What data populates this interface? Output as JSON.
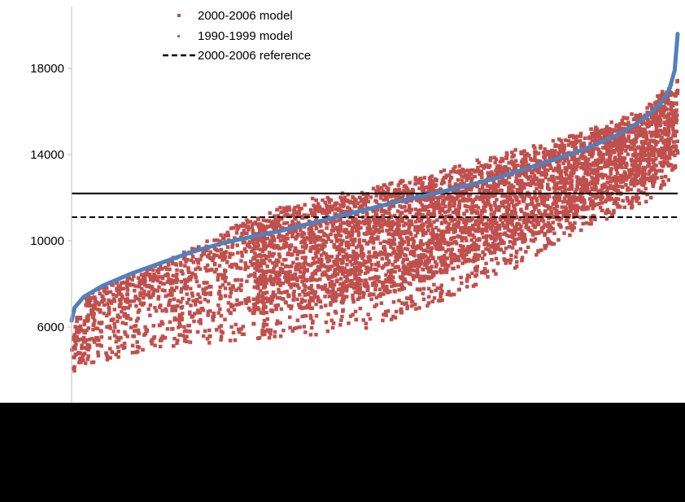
{
  "chart_data": {
    "type": "scatter",
    "title": "",
    "xlabel": "",
    "ylabel": "",
    "ylim": [
      4000,
      19500
    ],
    "y_ticks": [
      6000,
      10000,
      14000,
      18000
    ],
    "y_tick_labels": [
      "6000",
      "10000",
      "14000",
      "18000"
    ],
    "x_tick_labels": [],
    "grid": false,
    "legend_position": "top-center",
    "legend": [
      {
        "name": "2000-2006 model",
        "marker": "square",
        "color": "#C0504D"
      },
      {
        "name": "1990-1999 model",
        "marker": "dot",
        "color": "#4F81BD"
      },
      {
        "name": "2000-2006 reference",
        "marker": "dashed-line",
        "color": "#000000"
      }
    ],
    "series": [
      {
        "name": "2000-2006 model",
        "color": "#C0504D",
        "x_range": [
          0,
          100
        ],
        "upper_envelope": [
          [
            0,
            6000
          ],
          [
            2,
            7300
          ],
          [
            5,
            7900
          ],
          [
            10,
            8400
          ],
          [
            15,
            9000
          ],
          [
            20,
            9700
          ],
          [
            25,
            10400
          ],
          [
            30,
            11200
          ],
          [
            40,
            12000
          ],
          [
            50,
            12500
          ],
          [
            60,
            13200
          ],
          [
            70,
            14000
          ],
          [
            80,
            14700
          ],
          [
            90,
            15600
          ],
          [
            95,
            16300
          ],
          [
            100,
            17700
          ]
        ],
        "lower_envelope": [
          [
            0,
            3800
          ],
          [
            2,
            4300
          ],
          [
            5,
            4400
          ],
          [
            10,
            4800
          ],
          [
            15,
            5000
          ],
          [
            20,
            5200
          ],
          [
            30,
            5400
          ],
          [
            40,
            5600
          ],
          [
            50,
            6000
          ],
          [
            60,
            7100
          ],
          [
            70,
            8300
          ],
          [
            80,
            9700
          ],
          [
            85,
            10500
          ],
          [
            90,
            11200
          ],
          [
            95,
            11800
          ],
          [
            100,
            13200
          ]
        ]
      },
      {
        "name": "1990-1999 model",
        "color": "#4F81BD",
        "points": [
          [
            0,
            6300
          ],
          [
            0.5,
            6900
          ],
          [
            2,
            7400
          ],
          [
            5,
            7900
          ],
          [
            10,
            8500
          ],
          [
            15,
            9000
          ],
          [
            20,
            9500
          ],
          [
            25,
            9900
          ],
          [
            30,
            10200
          ],
          [
            35,
            10500
          ],
          [
            40,
            10850
          ],
          [
            45,
            11200
          ],
          [
            50,
            11550
          ],
          [
            55,
            11900
          ],
          [
            60,
            12200
          ],
          [
            65,
            12550
          ],
          [
            70,
            12900
          ],
          [
            75,
            13350
          ],
          [
            80,
            13800
          ],
          [
            85,
            14300
          ],
          [
            90,
            14900
          ],
          [
            93,
            15400
          ],
          [
            95,
            15800
          ],
          [
            97,
            16300
          ],
          [
            98.5,
            16900
          ],
          [
            99.5,
            17900
          ],
          [
            100,
            19600
          ]
        ]
      }
    ],
    "reference_lines": [
      {
        "name": "2000-2006 reference",
        "y": 11100,
        "style": "dashed",
        "color": "#000000"
      },
      {
        "name": "",
        "y": 12200,
        "style": "solid",
        "color": "#000000"
      }
    ]
  }
}
